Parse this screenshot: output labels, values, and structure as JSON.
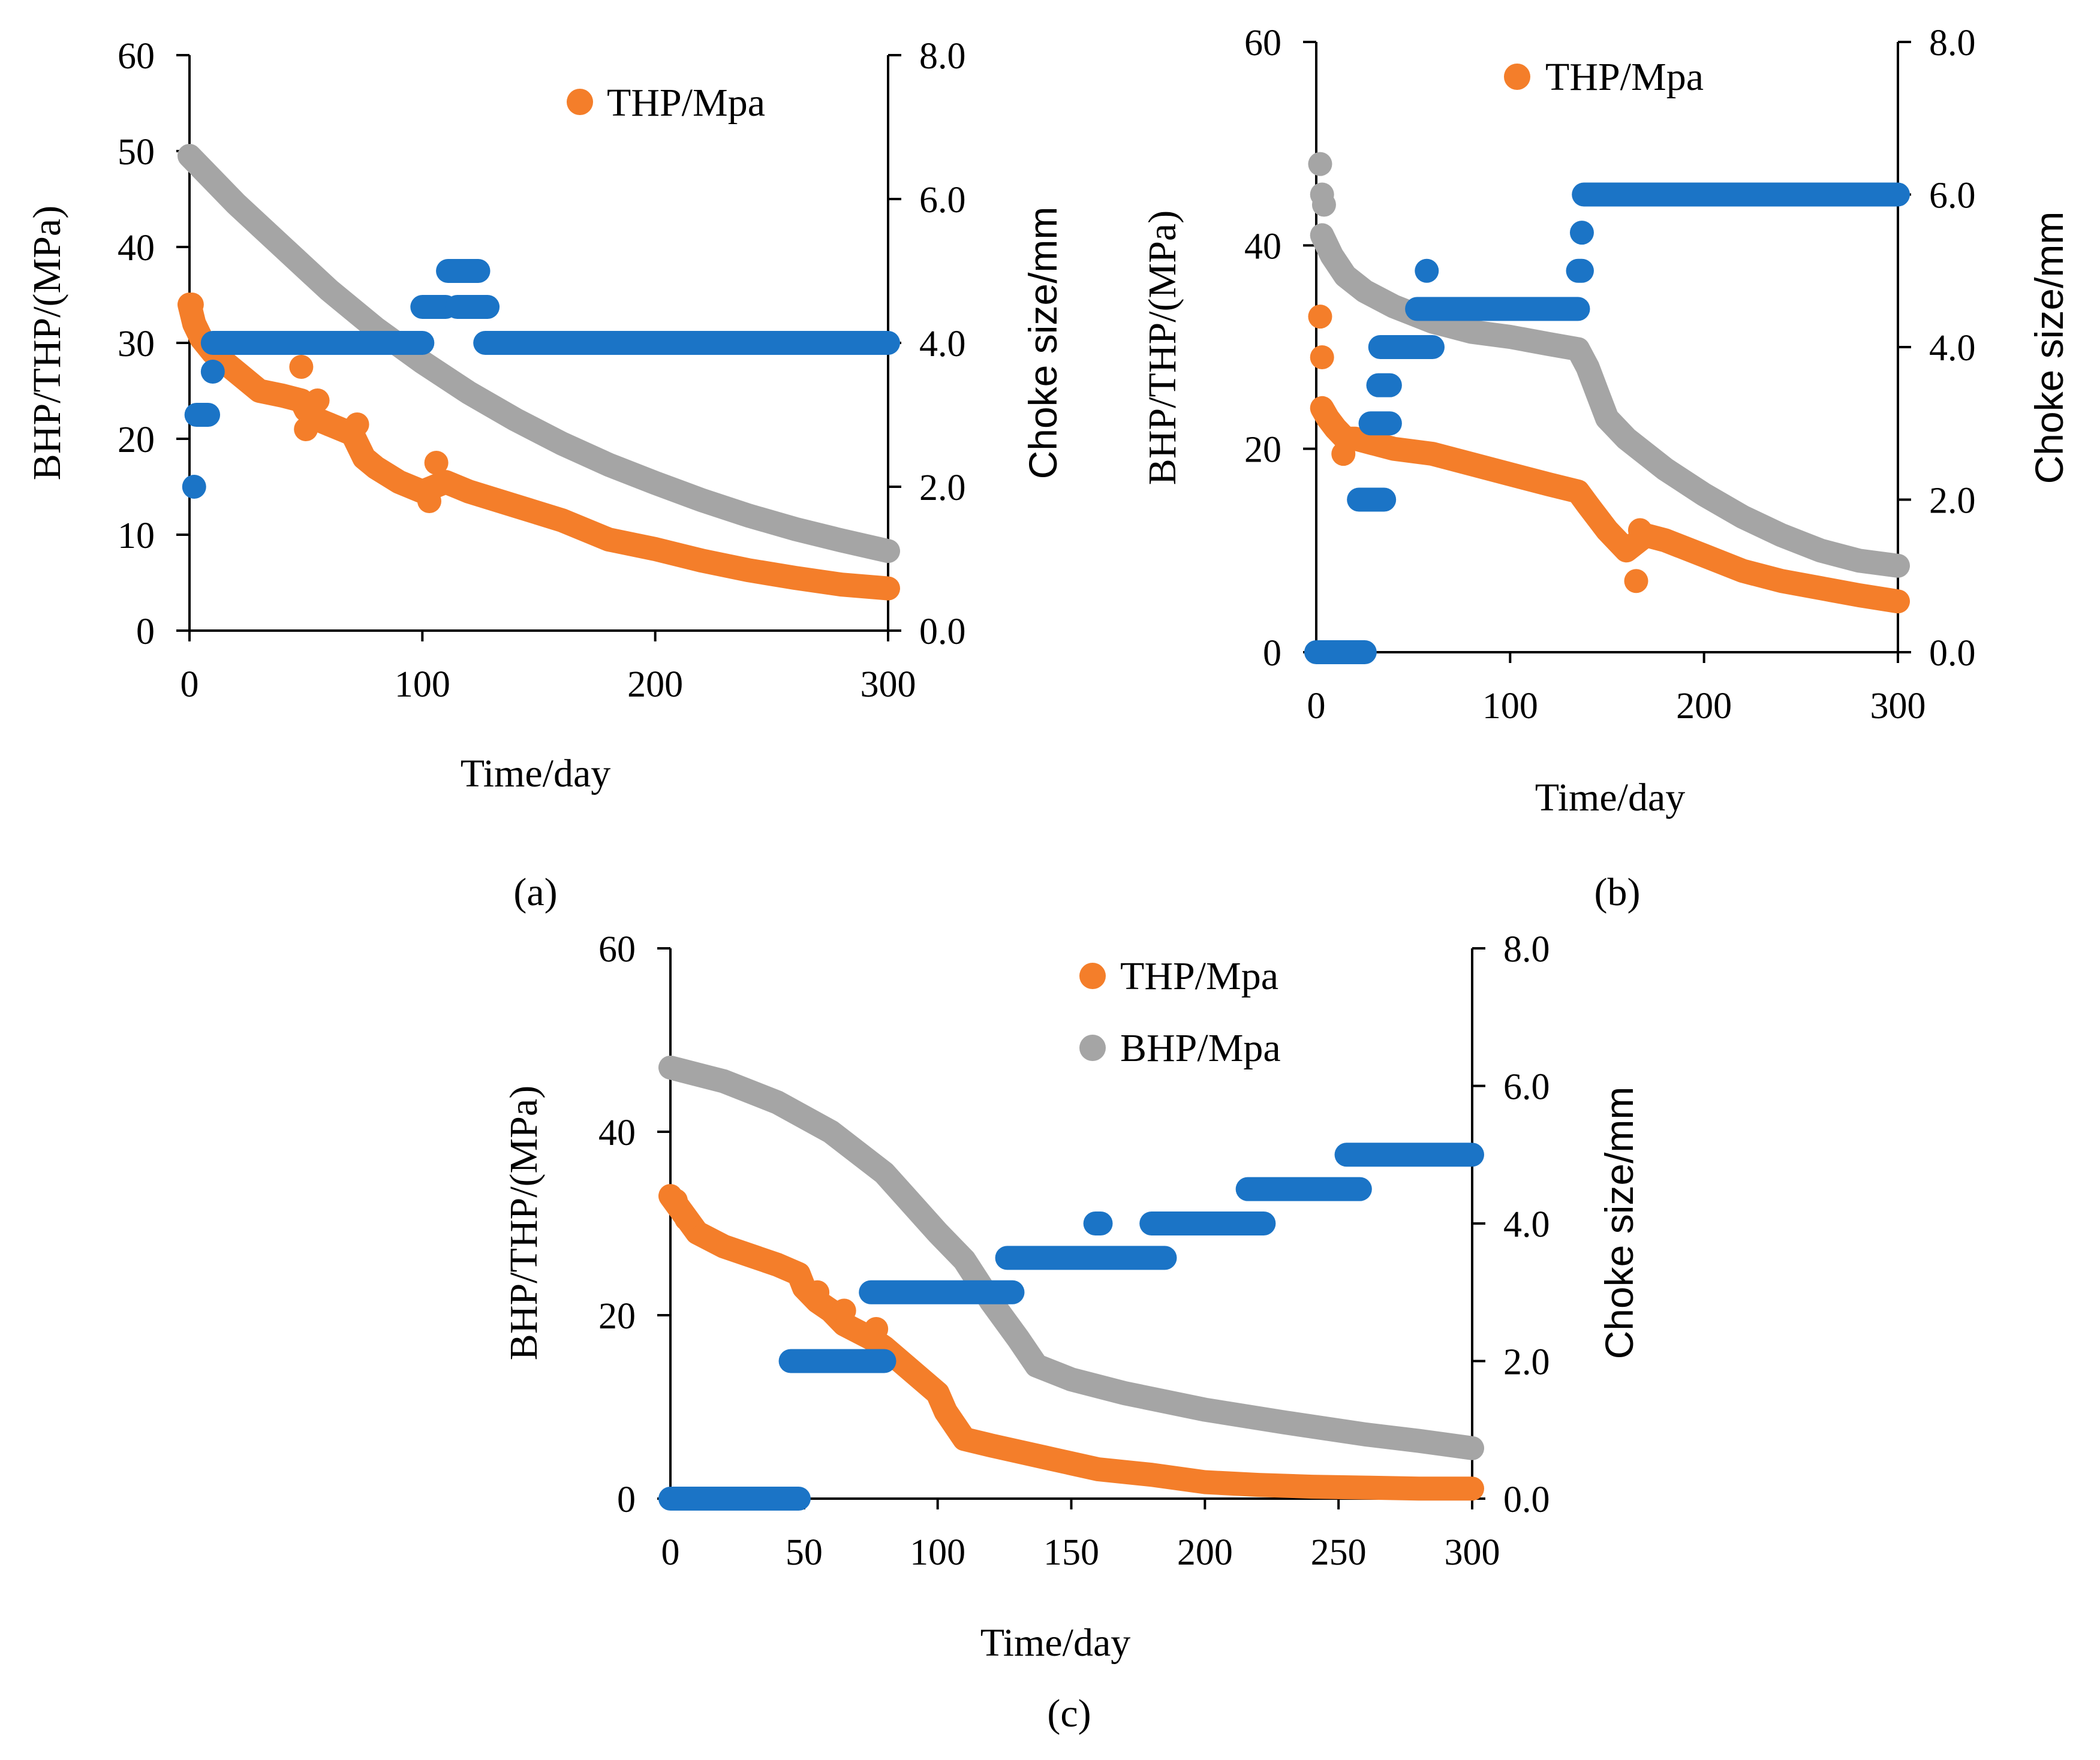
{
  "figure": {
    "colors": {
      "thp": "#F47E2A",
      "bhp": "#A5A5A5",
      "choke": "#1B74C6"
    }
  },
  "chart_data": [
    {
      "panel": "(a)",
      "type": "scatter",
      "xlabel": "Time/day",
      "ylabel_left": "BHP/THP/(MPa)",
      "ylabel_right": "Choke size/mm",
      "xlim": [
        0,
        300
      ],
      "ylim_left": [
        0,
        60
      ],
      "ylim_right": [
        0.0,
        8.0
      ],
      "x_ticks": [
        "0",
        "100",
        "200",
        "300"
      ],
      "y_left_ticks": [
        "0",
        "10",
        "20",
        "30",
        "40",
        "50",
        "60"
      ],
      "y_right_ticks": [
        "0.0",
        "2.0",
        "4.0",
        "6.0",
        "8.0"
      ],
      "legend": [
        "THP/Mpa"
      ],
      "series": [
        {
          "name": "BHP/Mpa",
          "color_key": "bhp",
          "axis": "left",
          "kind": "curve",
          "points": [
            [
              0,
              49.5
            ],
            [
              20,
              44.5
            ],
            [
              40,
              40
            ],
            [
              60,
              35.5
            ],
            [
              80,
              31.5
            ],
            [
              100,
              28
            ],
            [
              120,
              24.8
            ],
            [
              140,
              22
            ],
            [
              160,
              19.5
            ],
            [
              180,
              17.3
            ],
            [
              200,
              15.4
            ],
            [
              220,
              13.6
            ],
            [
              240,
              12
            ],
            [
              260,
              10.6
            ],
            [
              280,
              9.4
            ],
            [
              300,
              8.3
            ]
          ]
        },
        {
          "name": "THP/Mpa",
          "color_key": "thp",
          "axis": "left",
          "kind": "curve",
          "points": [
            [
              0,
              34
            ],
            [
              2,
              32
            ],
            [
              5,
              30.5
            ],
            [
              10,
              29
            ],
            [
              20,
              27
            ],
            [
              30,
              25
            ],
            [
              40,
              24.5
            ],
            [
              48,
              24
            ],
            [
              50,
              23
            ],
            [
              55,
              22
            ],
            [
              60,
              21.5
            ],
            [
              70,
              20.5
            ],
            [
              75,
              18
            ],
            [
              80,
              17
            ],
            [
              90,
              15.5
            ],
            [
              100,
              14.5
            ],
            [
              105,
              15
            ],
            [
              110,
              15.5
            ],
            [
              120,
              14.5
            ],
            [
              140,
              13
            ],
            [
              160,
              11.5
            ],
            [
              180,
              9.5
            ],
            [
              200,
              8.5
            ],
            [
              220,
              7.3
            ],
            [
              240,
              6.3
            ],
            [
              260,
              5.5
            ],
            [
              280,
              4.8
            ],
            [
              300,
              4.4
            ]
          ]
        },
        {
          "name": "THP/Mpa",
          "color_key": "thp",
          "axis": "left",
          "kind": "points",
          "points": [
            [
              1,
              34
            ],
            [
              48,
              27.5
            ],
            [
              50,
              21
            ],
            [
              55,
              24
            ],
            [
              60,
              21.5
            ],
            [
              72,
              21.5
            ],
            [
              103,
              13.5
            ],
            [
              106,
              17.5
            ]
          ]
        },
        {
          "name": "Choke size",
          "color_key": "choke",
          "axis": "right",
          "kind": "steps",
          "segments": [
            [
              2,
              2,
              2.0
            ],
            [
              3,
              8,
              3.0
            ],
            [
              10,
              10,
              3.6
            ],
            [
              10,
              100,
              4.0
            ],
            [
              100,
              110,
              4.5
            ],
            [
              111,
              124,
              5.0
            ],
            [
              115,
              128,
              4.5
            ],
            [
              127,
              300,
              4.0
            ]
          ]
        }
      ]
    },
    {
      "panel": "(b)",
      "type": "scatter",
      "xlabel": "Time/day",
      "ylabel_left": "BHP/THP/(MPa)",
      "ylabel_right": "Choke size/mm",
      "xlim": [
        0,
        300
      ],
      "ylim_left": [
        0,
        60
      ],
      "ylim_right": [
        0.0,
        8.0
      ],
      "x_ticks": [
        "0",
        "100",
        "200",
        "300"
      ],
      "y_left_ticks": [
        "0",
        "20",
        "40",
        "60"
      ],
      "y_right_ticks": [
        "0.0",
        "2.0",
        "4.0",
        "6.0",
        "8.0"
      ],
      "legend": [
        "THP/Mpa"
      ],
      "series": [
        {
          "name": "BHP/Mpa",
          "color_key": "bhp",
          "axis": "left",
          "kind": "curve",
          "points": [
            [
              3,
              41
            ],
            [
              8,
              39
            ],
            [
              15,
              37
            ],
            [
              25,
              35.5
            ],
            [
              40,
              34
            ],
            [
              60,
              32.5
            ],
            [
              80,
              31.5
            ],
            [
              100,
              31
            ],
            [
              120,
              30.3
            ],
            [
              135,
              29.8
            ],
            [
              140,
              28
            ],
            [
              145,
              25.5
            ],
            [
              150,
              23
            ],
            [
              160,
              21
            ],
            [
              180,
              18
            ],
            [
              200,
              15.5
            ],
            [
              220,
              13.3
            ],
            [
              240,
              11.5
            ],
            [
              260,
              10
            ],
            [
              280,
              9
            ],
            [
              300,
              8.5
            ]
          ]
        },
        {
          "name": "BHP/Mpa",
          "color_key": "bhp",
          "axis": "left",
          "kind": "points",
          "points": [
            [
              2,
              48
            ],
            [
              3,
              45
            ],
            [
              4,
              44
            ]
          ]
        },
        {
          "name": "THP/Mpa",
          "color_key": "thp",
          "axis": "left",
          "kind": "curve",
          "points": [
            [
              3,
              24
            ],
            [
              6,
              23
            ],
            [
              10,
              22
            ],
            [
              15,
              21
            ],
            [
              20,
              21
            ],
            [
              40,
              20
            ],
            [
              60,
              19.5
            ],
            [
              80,
              18.5
            ],
            [
              100,
              17.5
            ],
            [
              120,
              16.5
            ],
            [
              135,
              15.8
            ],
            [
              140,
              14.5
            ],
            [
              150,
              12
            ],
            [
              160,
              10
            ],
            [
              170,
              11.5
            ],
            [
              180,
              11
            ],
            [
              200,
              9.5
            ],
            [
              220,
              8
            ],
            [
              240,
              7
            ],
            [
              260,
              6.3
            ],
            [
              280,
              5.6
            ],
            [
              300,
              5
            ]
          ]
        },
        {
          "name": "THP/Mpa",
          "color_key": "thp",
          "axis": "left",
          "kind": "points",
          "points": [
            [
              2,
              33
            ],
            [
              3,
              29
            ],
            [
              14,
              19.5
            ],
            [
              165,
              7
            ],
            [
              167,
              12
            ]
          ]
        },
        {
          "name": "Choke size",
          "color_key": "choke",
          "axis": "right",
          "kind": "steps",
          "segments": [
            [
              0,
              25,
              0.0
            ],
            [
              22,
              35,
              2.0
            ],
            [
              28,
              38,
              3.0
            ],
            [
              32,
              38,
              3.5
            ],
            [
              33,
              60,
              4.0
            ],
            [
              57,
              57,
              5.0
            ],
            [
              52,
              135,
              4.5
            ],
            [
              135,
              137,
              5.0
            ],
            [
              137,
              137,
              5.5
            ],
            [
              138,
              300,
              6.0
            ]
          ]
        }
      ]
    },
    {
      "panel": "(c)",
      "type": "scatter",
      "xlabel": "Time/day",
      "ylabel_left": "BHP/THP/(MPa)",
      "ylabel_right": "Choke size/mm",
      "xlim": [
        0,
        300
      ],
      "ylim_left": [
        0,
        60
      ],
      "ylim_right": [
        0.0,
        8.0
      ],
      "x_ticks": [
        "0",
        "50",
        "100",
        "150",
        "200",
        "250",
        "300"
      ],
      "y_left_ticks": [
        "0",
        "20",
        "40",
        "60"
      ],
      "y_right_ticks": [
        "0.0",
        "2.0",
        "4.0",
        "6.0",
        "8.0"
      ],
      "legend": [
        "THP/Mpa",
        "BHP/Mpa"
      ],
      "series": [
        {
          "name": "BHP/Mpa",
          "color_key": "bhp",
          "axis": "left",
          "kind": "curve",
          "points": [
            [
              0,
              47
            ],
            [
              20,
              45.5
            ],
            [
              40,
              43.2
            ],
            [
              60,
              40
            ],
            [
              80,
              35.5
            ],
            [
              100,
              29
            ],
            [
              110,
              26
            ],
            [
              120,
              21.5
            ],
            [
              130,
              17.5
            ],
            [
              137,
              14.5
            ],
            [
              150,
              13
            ],
            [
              170,
              11.5
            ],
            [
              200,
              9.7
            ],
            [
              230,
              8.3
            ],
            [
              260,
              7
            ],
            [
              280,
              6.3
            ],
            [
              300,
              5.5
            ]
          ]
        },
        {
          "name": "THP/Mpa",
          "color_key": "thp",
          "axis": "left",
          "kind": "curve",
          "points": [
            [
              0,
              33
            ],
            [
              5,
              31
            ],
            [
              10,
              29
            ],
            [
              20,
              27.5
            ],
            [
              30,
              26.5
            ],
            [
              40,
              25.5
            ],
            [
              48,
              24.5
            ],
            [
              50,
              23
            ],
            [
              55,
              21.5
            ],
            [
              60,
              20.5
            ],
            [
              65,
              19
            ],
            [
              75,
              17.5
            ],
            [
              80,
              16.5
            ],
            [
              90,
              14
            ],
            [
              100,
              11.5
            ],
            [
              103,
              9.5
            ],
            [
              110,
              6.5
            ],
            [
              120,
              5.8
            ],
            [
              140,
              4.5
            ],
            [
              160,
              3.2
            ],
            [
              180,
              2.6
            ],
            [
              200,
              1.8
            ],
            [
              220,
              1.5
            ],
            [
              240,
              1.3
            ],
            [
              260,
              1.2
            ],
            [
              280,
              1.1
            ],
            [
              300,
              1.1
            ]
          ]
        },
        {
          "name": "THP/Mpa",
          "color_key": "thp",
          "axis": "left",
          "kind": "points",
          "points": [
            [
              2,
              32.5
            ],
            [
              6,
              30.5
            ],
            [
              55,
              22.5
            ],
            [
              65,
              20.5
            ],
            [
              77,
              18.5
            ]
          ]
        },
        {
          "name": "Choke size",
          "color_key": "choke",
          "axis": "right",
          "kind": "steps",
          "segments": [
            [
              0,
              48,
              0.0
            ],
            [
              45,
              80,
              2.0
            ],
            [
              75,
              128,
              3.0
            ],
            [
              126,
              185,
              3.5
            ],
            [
              159,
              161,
              4.0
            ],
            [
              180,
              222,
              4.0
            ],
            [
              216,
              258,
              4.5
            ],
            [
              253,
              300,
              5.0
            ]
          ]
        }
      ]
    }
  ]
}
